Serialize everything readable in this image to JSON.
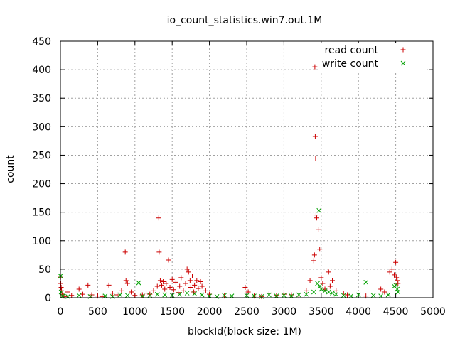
{
  "chart_data": {
    "type": "scatter",
    "title": "io_count_statistics.win7.out.1M",
    "xlabel": "blockId(block size: 1M)",
    "ylabel": "count",
    "xlim": [
      0,
      5000
    ],
    "ylim": [
      0,
      450
    ],
    "x_ticks": [
      0,
      500,
      1000,
      1500,
      2000,
      2500,
      3000,
      3500,
      4000,
      4500,
      5000
    ],
    "y_ticks": [
      0,
      50,
      100,
      150,
      200,
      250,
      300,
      350,
      400,
      450
    ],
    "grid": true,
    "legend_position": "top-right",
    "series": [
      {
        "name": "read count",
        "marker": "plus",
        "color": "#cc0000",
        "points": [
          [
            2,
            36
          ],
          [
            5,
            25
          ],
          [
            10,
            18
          ],
          [
            15,
            12
          ],
          [
            20,
            8
          ],
          [
            30,
            5
          ],
          [
            40,
            3
          ],
          [
            60,
            2
          ],
          [
            100,
            10
          ],
          [
            150,
            4
          ],
          [
            250,
            15
          ],
          [
            300,
            6
          ],
          [
            370,
            22
          ],
          [
            420,
            5
          ],
          [
            500,
            3
          ],
          [
            560,
            2
          ],
          [
            650,
            22
          ],
          [
            700,
            8
          ],
          [
            760,
            5
          ],
          [
            820,
            12
          ],
          [
            870,
            80
          ],
          [
            880,
            30
          ],
          [
            900,
            25
          ],
          [
            950,
            10
          ],
          [
            1000,
            4
          ],
          [
            1100,
            5
          ],
          [
            1150,
            8
          ],
          [
            1200,
            6
          ],
          [
            1250,
            12
          ],
          [
            1300,
            20
          ],
          [
            1320,
            140
          ],
          [
            1325,
            80
          ],
          [
            1340,
            30
          ],
          [
            1360,
            22
          ],
          [
            1380,
            28
          ],
          [
            1400,
            15
          ],
          [
            1420,
            25
          ],
          [
            1450,
            66
          ],
          [
            1470,
            18
          ],
          [
            1500,
            32
          ],
          [
            1520,
            14
          ],
          [
            1550,
            27
          ],
          [
            1580,
            9
          ],
          [
            1600,
            20
          ],
          [
            1620,
            35
          ],
          [
            1650,
            12
          ],
          [
            1680,
            25
          ],
          [
            1700,
            50
          ],
          [
            1720,
            45
          ],
          [
            1740,
            30
          ],
          [
            1750,
            18
          ],
          [
            1770,
            38
          ],
          [
            1790,
            10
          ],
          [
            1800,
            22
          ],
          [
            1830,
            30
          ],
          [
            1850,
            16
          ],
          [
            1880,
            28
          ],
          [
            1900,
            20
          ],
          [
            1950,
            12
          ],
          [
            2000,
            6
          ],
          [
            2200,
            3
          ],
          [
            2480,
            18
          ],
          [
            2520,
            10
          ],
          [
            2600,
            3
          ],
          [
            2700,
            2
          ],
          [
            2800,
            8
          ],
          [
            2900,
            4
          ],
          [
            3000,
            6
          ],
          [
            3100,
            5
          ],
          [
            3200,
            3
          ],
          [
            3300,
            12
          ],
          [
            3350,
            30
          ],
          [
            3400,
            65
          ],
          [
            3410,
            75
          ],
          [
            3415,
            405
          ],
          [
            3420,
            283
          ],
          [
            3425,
            245
          ],
          [
            3430,
            145
          ],
          [
            3440,
            140
          ],
          [
            3460,
            120
          ],
          [
            3480,
            85
          ],
          [
            3500,
            35
          ],
          [
            3520,
            25
          ],
          [
            3550,
            15
          ],
          [
            3600,
            45
          ],
          [
            3620,
            20
          ],
          [
            3650,
            30
          ],
          [
            3700,
            12
          ],
          [
            3800,
            8
          ],
          [
            3850,
            5
          ],
          [
            4100,
            3
          ],
          [
            4300,
            15
          ],
          [
            4350,
            10
          ],
          [
            4420,
            45
          ],
          [
            4450,
            50
          ],
          [
            4480,
            40
          ],
          [
            4500,
            62
          ],
          [
            4510,
            35
          ],
          [
            4520,
            30
          ],
          [
            4530,
            25
          ]
        ]
      },
      {
        "name": "write count",
        "marker": "cross",
        "color": "#00a000",
        "points": [
          [
            2,
            38
          ],
          [
            10,
            10
          ],
          [
            30,
            3
          ],
          [
            100,
            2
          ],
          [
            250,
            4
          ],
          [
            400,
            2
          ],
          [
            600,
            3
          ],
          [
            700,
            2
          ],
          [
            800,
            5
          ],
          [
            900,
            4
          ],
          [
            1050,
            26
          ],
          [
            1100,
            3
          ],
          [
            1200,
            4
          ],
          [
            1300,
            6
          ],
          [
            1400,
            5
          ],
          [
            1500,
            4
          ],
          [
            1600,
            6
          ],
          [
            1700,
            8
          ],
          [
            1800,
            7
          ],
          [
            1900,
            5
          ],
          [
            2000,
            3
          ],
          [
            2100,
            2
          ],
          [
            2200,
            4
          ],
          [
            2300,
            3
          ],
          [
            2500,
            4
          ],
          [
            2600,
            3
          ],
          [
            2700,
            2
          ],
          [
            2800,
            5
          ],
          [
            2900,
            3
          ],
          [
            3000,
            4
          ],
          [
            3100,
            3
          ],
          [
            3200,
            5
          ],
          [
            3300,
            6
          ],
          [
            3400,
            10
          ],
          [
            3450,
            25
          ],
          [
            3470,
            153
          ],
          [
            3480,
            20
          ],
          [
            3500,
            15
          ],
          [
            3550,
            12
          ],
          [
            3600,
            10
          ],
          [
            3650,
            8
          ],
          [
            3700,
            6
          ],
          [
            3800,
            4
          ],
          [
            3900,
            3
          ],
          [
            4000,
            5
          ],
          [
            4100,
            27
          ],
          [
            4200,
            4
          ],
          [
            4300,
            3
          ],
          [
            4400,
            5
          ],
          [
            4480,
            20
          ],
          [
            4500,
            22
          ],
          [
            4520,
            15
          ],
          [
            4530,
            10
          ]
        ]
      }
    ]
  }
}
